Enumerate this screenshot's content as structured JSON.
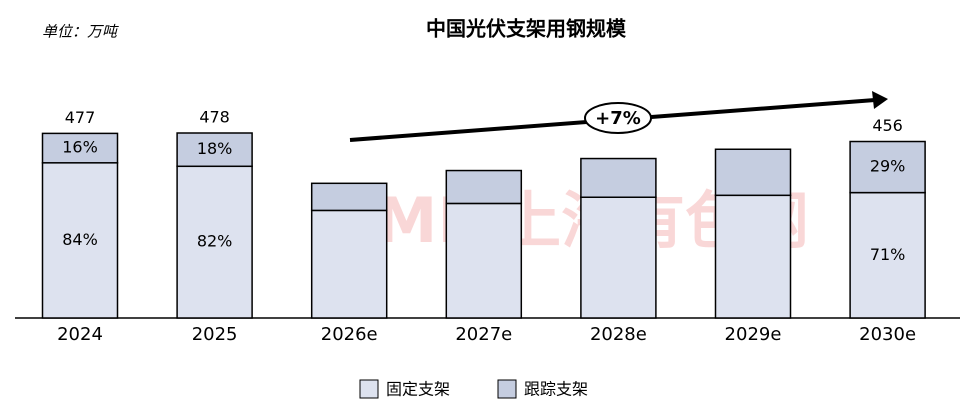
{
  "chart_data": {
    "type": "stacked-bar",
    "title": "中国光伏支架用钢规模",
    "unit_label": "单位：万吨",
    "watermark": "SMM上海有色网",
    "annotation": "+7%",
    "categories": [
      "2024",
      "2025",
      "2026e",
      "2027e",
      "2028e",
      "2029e",
      "2030e"
    ],
    "series": [
      {
        "name": "固定支架",
        "color": "#dde2ef",
        "values": [
          401,
          392,
          278,
          296,
          312,
          317,
          324
        ],
        "share_labels": [
          "84%",
          "82%",
          null,
          null,
          null,
          null,
          "71%"
        ]
      },
      {
        "name": "跟踪支架",
        "color": "#c5cde0",
        "values": [
          76,
          86,
          70,
          85,
          100,
          119,
          132
        ],
        "share_labels": [
          "16%",
          "18%",
          null,
          null,
          null,
          null,
          "29%"
        ]
      }
    ],
    "total_labels": [
      477,
      478,
      null,
      null,
      null,
      null,
      456
    ]
  }
}
